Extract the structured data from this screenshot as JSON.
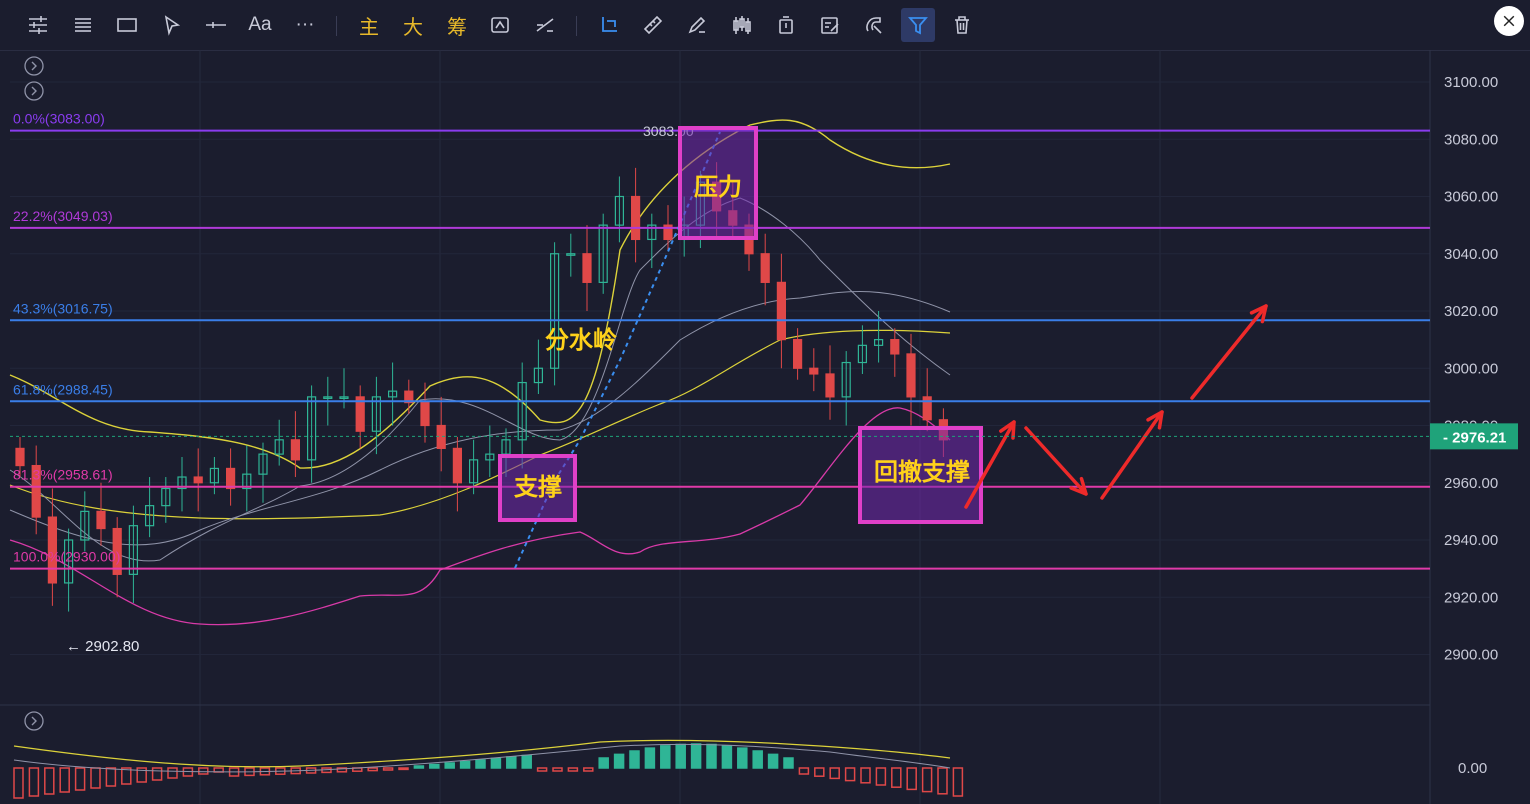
{
  "toolbar": {
    "tools": [
      {
        "name": "indicator-settings-icon"
      },
      {
        "name": "list-icon"
      },
      {
        "name": "rectangle-icon"
      },
      {
        "name": "cursor-icon"
      },
      {
        "name": "horizontal-line-icon"
      },
      {
        "name": "text-tool-button",
        "label": "Aa"
      },
      {
        "name": "more-tools-button",
        "label": "···"
      },
      {
        "name": "main-indicator-button",
        "label": "主"
      },
      {
        "name": "large-button",
        "label": "大"
      },
      {
        "name": "chips-button",
        "label": "筹"
      },
      {
        "name": "replay-icon"
      },
      {
        "name": "compare-icon"
      },
      {
        "name": "select-icon"
      },
      {
        "name": "ruler-icon"
      },
      {
        "name": "brush-icon"
      },
      {
        "name": "candle-type-icon"
      },
      {
        "name": "lock-icon"
      },
      {
        "name": "note-icon"
      },
      {
        "name": "magnet-icon"
      },
      {
        "name": "filter-icon"
      },
      {
        "name": "delete-icon"
      }
    ]
  },
  "price_axis": {
    "labels": [
      "3100.00",
      "3080.00",
      "3060.00",
      "3040.00",
      "3020.00",
      "3000.00",
      "2980.00",
      "2960.00",
      "2940.00",
      "2920.00",
      "2900.00"
    ],
    "current_price": "2976.21",
    "volume_zero": "0.00"
  },
  "fib_levels": [
    {
      "label": "0.0%(3083.00)",
      "price": 3083.0,
      "color": "#8a3cf0"
    },
    {
      "label": "22.2%(3049.03)",
      "price": 3049.03,
      "color": "#b03ad8"
    },
    {
      "label": "43.3%(3016.75)",
      "price": 3016.75,
      "color": "#3a7ee8"
    },
    {
      "label": "61.8%(2988.45)",
      "price": 2988.45,
      "color": "#3a7ee8"
    },
    {
      "label": "81.3%(2958.61)",
      "price": 2958.61,
      "color": "#e03aa8"
    },
    {
      "label": "100.0%(2930.00)",
      "price": 2930.0,
      "color": "#e03aa8"
    }
  ],
  "annotations": {
    "high_label": "3083.00",
    "low_label": "← 2902.80",
    "watershed": "分水岭",
    "pressure": "压力",
    "support": "支撑",
    "pullback_support": "回撤支撑"
  },
  "colors": {
    "up": "#2fb596",
    "down": "#e04848",
    "annotation_box": "#e040c8",
    "annotation_text": "#ffd21a",
    "arrow": "#ee2a2a",
    "current_price_bg": "#1fa37a"
  }
}
